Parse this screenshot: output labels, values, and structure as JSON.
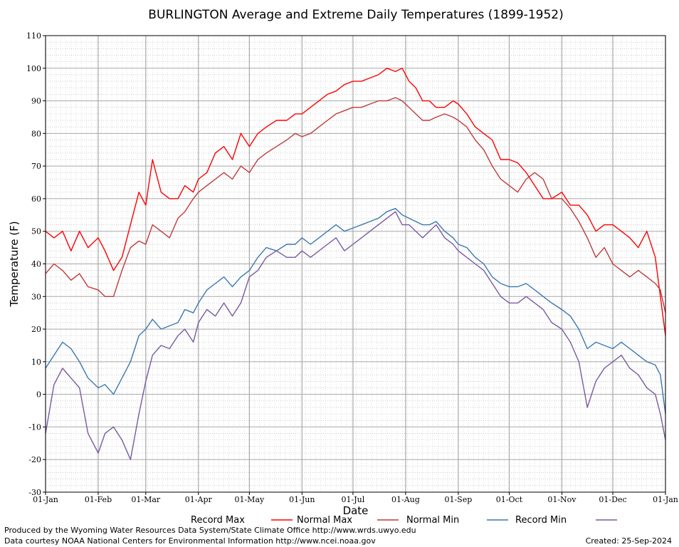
{
  "chart_data": {
    "type": "line",
    "title": "BURLINGTON Average and Extreme Daily Temperatures (1899-1952)",
    "xlabel": "Date",
    "ylabel": "Temperature (F)",
    "ylim": [
      -30,
      110
    ],
    "yticks": [
      -30,
      -20,
      -10,
      0,
      10,
      20,
      30,
      40,
      50,
      60,
      70,
      80,
      90,
      100,
      110
    ],
    "xlim": [
      0,
      365
    ],
    "x_tick_days": [
      0,
      31,
      59,
      90,
      120,
      151,
      181,
      212,
      243,
      273,
      304,
      334,
      365
    ],
    "x_tick_labels": [
      "01-Jan",
      "01-Feb",
      "01-Mar",
      "01-Apr",
      "01-May",
      "01-Jun",
      "01-Jul",
      "01-Aug",
      "01-Sep",
      "01-Oct",
      "01-Nov",
      "01-Dec",
      "01-Jan"
    ],
    "grid": true,
    "legend_position": "bottom",
    "series": [
      {
        "name": "Record Max",
        "color": "#ff0000",
        "points": [
          [
            0,
            50
          ],
          [
            5,
            48
          ],
          [
            10,
            50
          ],
          [
            15,
            44
          ],
          [
            20,
            50
          ],
          [
            25,
            45
          ],
          [
            31,
            48
          ],
          [
            35,
            44
          ],
          [
            40,
            38
          ],
          [
            45,
            42
          ],
          [
            50,
            52
          ],
          [
            55,
            62
          ],
          [
            59,
            58
          ],
          [
            63,
            72
          ],
          [
            68,
            62
          ],
          [
            73,
            60
          ],
          [
            78,
            60
          ],
          [
            82,
            64
          ],
          [
            87,
            62
          ],
          [
            90,
            66
          ],
          [
            95,
            68
          ],
          [
            100,
            74
          ],
          [
            105,
            76
          ],
          [
            110,
            72
          ],
          [
            115,
            80
          ],
          [
            120,
            76
          ],
          [
            125,
            80
          ],
          [
            130,
            82
          ],
          [
            136,
            84
          ],
          [
            142,
            84
          ],
          [
            147,
            86
          ],
          [
            151,
            86
          ],
          [
            156,
            88
          ],
          [
            161,
            90
          ],
          [
            166,
            92
          ],
          [
            171,
            93
          ],
          [
            176,
            95
          ],
          [
            181,
            96
          ],
          [
            186,
            96
          ],
          [
            191,
            97
          ],
          [
            196,
            98
          ],
          [
            201,
            100
          ],
          [
            206,
            99
          ],
          [
            210,
            100
          ],
          [
            214,
            96
          ],
          [
            218,
            94
          ],
          [
            222,
            90
          ],
          [
            226,
            90
          ],
          [
            230,
            88
          ],
          [
            235,
            88
          ],
          [
            240,
            90
          ],
          [
            243,
            89
          ],
          [
            248,
            86
          ],
          [
            253,
            82
          ],
          [
            258,
            80
          ],
          [
            263,
            78
          ],
          [
            268,
            72
          ],
          [
            273,
            72
          ],
          [
            278,
            71
          ],
          [
            283,
            68
          ],
          [
            288,
            64
          ],
          [
            293,
            60
          ],
          [
            298,
            60
          ],
          [
            304,
            62
          ],
          [
            309,
            58
          ],
          [
            314,
            58
          ],
          [
            319,
            55
          ],
          [
            324,
            50
          ],
          [
            329,
            52
          ],
          [
            334,
            52
          ],
          [
            339,
            50
          ],
          [
            344,
            48
          ],
          [
            349,
            45
          ],
          [
            354,
            50
          ],
          [
            359,
            42
          ],
          [
            362,
            30
          ],
          [
            365,
            18
          ]
        ]
      },
      {
        "name": "Normal Max",
        "color": "#c03a3a",
        "points": [
          [
            0,
            37
          ],
          [
            5,
            40
          ],
          [
            10,
            38
          ],
          [
            15,
            35
          ],
          [
            20,
            37
          ],
          [
            25,
            33
          ],
          [
            31,
            32
          ],
          [
            35,
            30
          ],
          [
            40,
            30
          ],
          [
            45,
            38
          ],
          [
            50,
            45
          ],
          [
            55,
            47
          ],
          [
            59,
            46
          ],
          [
            63,
            52
          ],
          [
            68,
            50
          ],
          [
            73,
            48
          ],
          [
            78,
            54
          ],
          [
            82,
            56
          ],
          [
            87,
            60
          ],
          [
            90,
            62
          ],
          [
            95,
            64
          ],
          [
            100,
            66
          ],
          [
            105,
            68
          ],
          [
            110,
            66
          ],
          [
            115,
            70
          ],
          [
            120,
            68
          ],
          [
            125,
            72
          ],
          [
            130,
            74
          ],
          [
            136,
            76
          ],
          [
            142,
            78
          ],
          [
            147,
            80
          ],
          [
            151,
            79
          ],
          [
            156,
            80
          ],
          [
            161,
            82
          ],
          [
            166,
            84
          ],
          [
            171,
            86
          ],
          [
            176,
            87
          ],
          [
            181,
            88
          ],
          [
            186,
            88
          ],
          [
            191,
            89
          ],
          [
            196,
            90
          ],
          [
            201,
            90
          ],
          [
            206,
            91
          ],
          [
            210,
            90
          ],
          [
            214,
            88
          ],
          [
            218,
            86
          ],
          [
            222,
            84
          ],
          [
            226,
            84
          ],
          [
            230,
            85
          ],
          [
            235,
            86
          ],
          [
            240,
            85
          ],
          [
            243,
            84
          ],
          [
            248,
            82
          ],
          [
            253,
            78
          ],
          [
            258,
            75
          ],
          [
            263,
            70
          ],
          [
            268,
            66
          ],
          [
            273,
            64
          ],
          [
            278,
            62
          ],
          [
            283,
            66
          ],
          [
            288,
            68
          ],
          [
            293,
            66
          ],
          [
            298,
            60
          ],
          [
            304,
            60
          ],
          [
            309,
            57
          ],
          [
            314,
            53
          ],
          [
            319,
            48
          ],
          [
            324,
            42
          ],
          [
            329,
            45
          ],
          [
            334,
            40
          ],
          [
            339,
            38
          ],
          [
            344,
            36
          ],
          [
            349,
            38
          ],
          [
            354,
            36
          ],
          [
            359,
            34
          ],
          [
            362,
            32
          ],
          [
            365,
            25
          ]
        ]
      },
      {
        "name": "Normal Min",
        "color": "#3a78b0",
        "points": [
          [
            0,
            8
          ],
          [
            5,
            12
          ],
          [
            10,
            16
          ],
          [
            15,
            14
          ],
          [
            20,
            10
          ],
          [
            25,
            5
          ],
          [
            31,
            2
          ],
          [
            35,
            3
          ],
          [
            40,
            0
          ],
          [
            45,
            5
          ],
          [
            50,
            10
          ],
          [
            55,
            18
          ],
          [
            59,
            20
          ],
          [
            63,
            23
          ],
          [
            68,
            20
          ],
          [
            73,
            21
          ],
          [
            78,
            22
          ],
          [
            82,
            26
          ],
          [
            87,
            25
          ],
          [
            90,
            28
          ],
          [
            95,
            32
          ],
          [
            100,
            34
          ],
          [
            105,
            36
          ],
          [
            110,
            33
          ],
          [
            115,
            36
          ],
          [
            120,
            38
          ],
          [
            125,
            42
          ],
          [
            130,
            45
          ],
          [
            136,
            44
          ],
          [
            142,
            46
          ],
          [
            147,
            46
          ],
          [
            151,
            48
          ],
          [
            156,
            46
          ],
          [
            161,
            48
          ],
          [
            166,
            50
          ],
          [
            171,
            52
          ],
          [
            176,
            50
          ],
          [
            181,
            51
          ],
          [
            186,
            52
          ],
          [
            191,
            53
          ],
          [
            196,
            54
          ],
          [
            201,
            56
          ],
          [
            206,
            57
          ],
          [
            210,
            55
          ],
          [
            214,
            54
          ],
          [
            218,
            53
          ],
          [
            222,
            52
          ],
          [
            226,
            52
          ],
          [
            230,
            53
          ],
          [
            235,
            50
          ],
          [
            240,
            48
          ],
          [
            243,
            46
          ],
          [
            248,
            45
          ],
          [
            253,
            42
          ],
          [
            258,
            40
          ],
          [
            263,
            36
          ],
          [
            268,
            34
          ],
          [
            273,
            33
          ],
          [
            278,
            33
          ],
          [
            283,
            34
          ],
          [
            288,
            32
          ],
          [
            293,
            30
          ],
          [
            298,
            28
          ],
          [
            304,
            26
          ],
          [
            309,
            24
          ],
          [
            314,
            20
          ],
          [
            319,
            14
          ],
          [
            324,
            16
          ],
          [
            329,
            15
          ],
          [
            334,
            14
          ],
          [
            339,
            16
          ],
          [
            344,
            14
          ],
          [
            349,
            12
          ],
          [
            354,
            10
          ],
          [
            359,
            9
          ],
          [
            362,
            6
          ],
          [
            365,
            -6
          ]
        ]
      },
      {
        "name": "Record Min",
        "color": "#7a5aa0",
        "points": [
          [
            0,
            -12
          ],
          [
            5,
            3
          ],
          [
            10,
            8
          ],
          [
            15,
            5
          ],
          [
            20,
            2
          ],
          [
            25,
            -12
          ],
          [
            31,
            -18
          ],
          [
            35,
            -12
          ],
          [
            40,
            -10
          ],
          [
            45,
            -14
          ],
          [
            50,
            -20
          ],
          [
            55,
            -6
          ],
          [
            59,
            4
          ],
          [
            63,
            12
          ],
          [
            68,
            15
          ],
          [
            73,
            14
          ],
          [
            78,
            18
          ],
          [
            82,
            20
          ],
          [
            87,
            16
          ],
          [
            90,
            22
          ],
          [
            95,
            26
          ],
          [
            100,
            24
          ],
          [
            105,
            28
          ],
          [
            110,
            24
          ],
          [
            115,
            28
          ],
          [
            120,
            36
          ],
          [
            125,
            38
          ],
          [
            130,
            42
          ],
          [
            136,
            44
          ],
          [
            142,
            42
          ],
          [
            147,
            42
          ],
          [
            151,
            44
          ],
          [
            156,
            42
          ],
          [
            161,
            44
          ],
          [
            166,
            46
          ],
          [
            171,
            48
          ],
          [
            176,
            44
          ],
          [
            181,
            46
          ],
          [
            186,
            48
          ],
          [
            191,
            50
          ],
          [
            196,
            52
          ],
          [
            201,
            54
          ],
          [
            206,
            56
          ],
          [
            210,
            52
          ],
          [
            214,
            52
          ],
          [
            218,
            50
          ],
          [
            222,
            48
          ],
          [
            226,
            50
          ],
          [
            230,
            52
          ],
          [
            235,
            48
          ],
          [
            240,
            46
          ],
          [
            243,
            44
          ],
          [
            248,
            42
          ],
          [
            253,
            40
          ],
          [
            258,
            38
          ],
          [
            263,
            34
          ],
          [
            268,
            30
          ],
          [
            273,
            28
          ],
          [
            278,
            28
          ],
          [
            283,
            30
          ],
          [
            288,
            28
          ],
          [
            293,
            26
          ],
          [
            298,
            22
          ],
          [
            304,
            20
          ],
          [
            309,
            16
          ],
          [
            314,
            10
          ],
          [
            319,
            -4
          ],
          [
            324,
            4
          ],
          [
            329,
            8
          ],
          [
            334,
            10
          ],
          [
            339,
            12
          ],
          [
            344,
            8
          ],
          [
            349,
            6
          ],
          [
            354,
            2
          ],
          [
            359,
            0
          ],
          [
            362,
            -6
          ],
          [
            365,
            -14
          ]
        ]
      }
    ]
  },
  "footer": {
    "line1": "Produced by the Wyoming Water Resources Data System/State Climate Office http://www.wrds.uwyo.edu",
    "line2": "Data courtesy NOAA National Centers for Environmental Information http://www.ncei.noaa.gov",
    "created": "Created:  25-Sep-2024"
  }
}
